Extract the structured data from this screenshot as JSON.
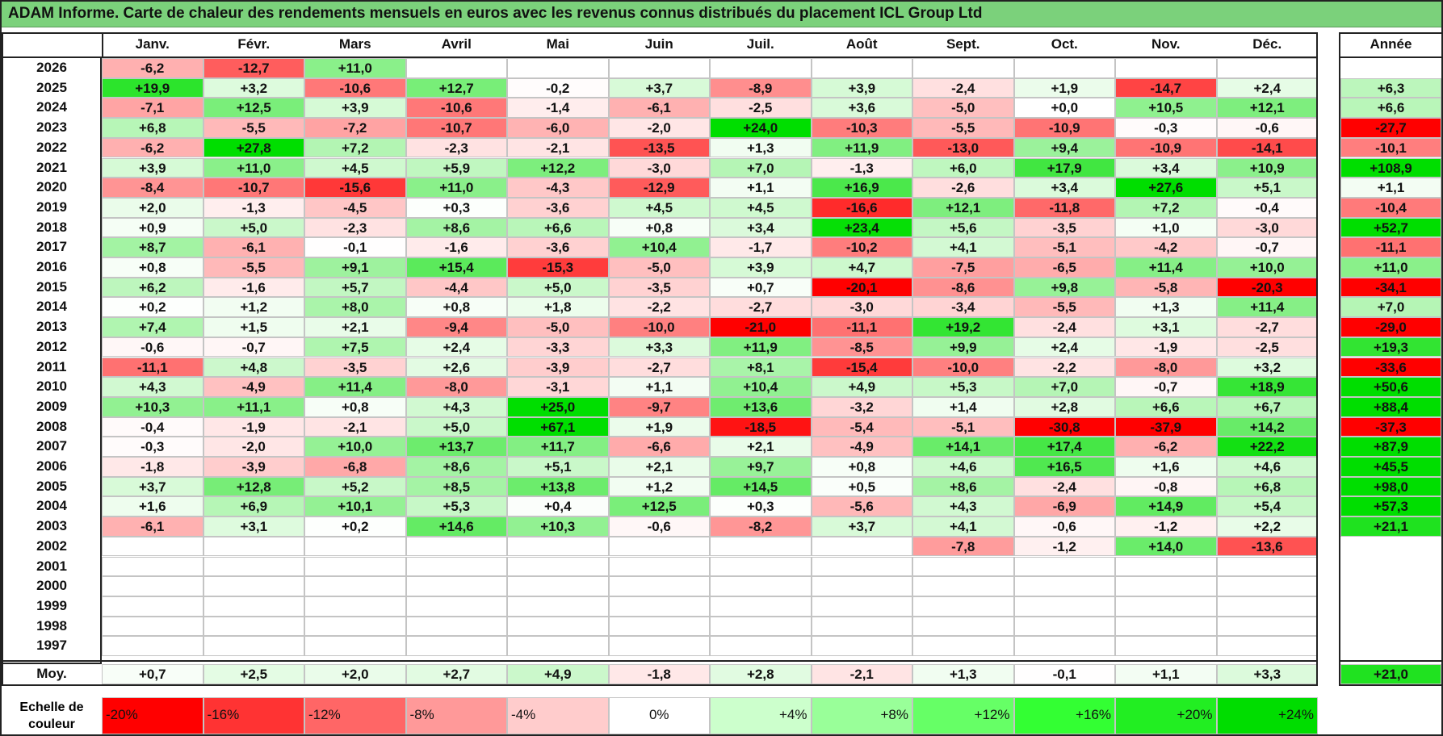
{
  "title": "ADAM Informe. Carte de chaleur des rendements mensuels en euros avec les revenus connus distribués du placement ICL Group Ltd",
  "chart_data": {
    "type": "heatmap",
    "title": "ADAM Informe. Carte de chaleur des rendements mensuels en euros avec les revenus connus distribués du placement ICL Group Ltd",
    "columns": [
      "Janv.",
      "Févr.",
      "Mars",
      "Avril",
      "Mai",
      "Juin",
      "Juil.",
      "Août",
      "Sept.",
      "Oct.",
      "Nov.",
      "Déc."
    ],
    "year_column_label": "Année",
    "rows": [
      {
        "year": "2026",
        "values": [
          "-6,2",
          "-12,7",
          "+11,0",
          "",
          "",
          "",
          "",
          "",
          "",
          "",
          "",
          ""
        ],
        "annual": ""
      },
      {
        "year": "2025",
        "values": [
          "+19,9",
          "+3,2",
          "-10,6",
          "+12,7",
          "-0,2",
          "+3,7",
          "-8,9",
          "+3,9",
          "-2,4",
          "+1,9",
          "-14,7",
          "+2,4"
        ],
        "annual": "+6,3"
      },
      {
        "year": "2024",
        "values": [
          "-7,1",
          "+12,5",
          "+3,9",
          "-10,6",
          "-1,4",
          "-6,1",
          "-2,5",
          "+3,6",
          "-5,0",
          "+0,0",
          "+10,5",
          "+12,1"
        ],
        "annual": "+6,6"
      },
      {
        "year": "2023",
        "values": [
          "+6,8",
          "-5,5",
          "-7,2",
          "-10,7",
          "-6,0",
          "-2,0",
          "+24,0",
          "-10,3",
          "-5,5",
          "-10,9",
          "-0,3",
          "-0,6"
        ],
        "annual": "-27,7"
      },
      {
        "year": "2022",
        "values": [
          "-6,2",
          "+27,8",
          "+7,2",
          "-2,3",
          "-2,1",
          "-13,5",
          "+1,3",
          "+11,9",
          "-13,0",
          "+9,4",
          "-10,9",
          "-14,1"
        ],
        "annual": "-10,1"
      },
      {
        "year": "2021",
        "values": [
          "+3,9",
          "+11,0",
          "+4,5",
          "+5,9",
          "+12,2",
          "-3,0",
          "+7,0",
          "-1,3",
          "+6,0",
          "+17,9",
          "+3,4",
          "+10,9"
        ],
        "annual": "+108,9"
      },
      {
        "year": "2020",
        "values": [
          "-8,4",
          "-10,7",
          "-15,6",
          "+11,0",
          "-4,3",
          "-12,9",
          "+1,1",
          "+16,9",
          "-2,6",
          "+3,4",
          "+27,6",
          "+5,1"
        ],
        "annual": "+1,1"
      },
      {
        "year": "2019",
        "values": [
          "+2,0",
          "-1,3",
          "-4,5",
          "+0,3",
          "-3,6",
          "+4,5",
          "+4,5",
          "-16,6",
          "+12,1",
          "-11,8",
          "+7,2",
          "-0,4"
        ],
        "annual": "-10,4"
      },
      {
        "year": "2018",
        "values": [
          "+0,9",
          "+5,0",
          "-2,3",
          "+8,6",
          "+6,6",
          "+0,8",
          "+3,4",
          "+23,4",
          "+5,6",
          "-3,5",
          "+1,0",
          "-3,0"
        ],
        "annual": "+52,7"
      },
      {
        "year": "2017",
        "values": [
          "+8,7",
          "-6,1",
          "-0,1",
          "-1,6",
          "-3,6",
          "+10,4",
          "-1,7",
          "-10,2",
          "+4,1",
          "-5,1",
          "-4,2",
          "-0,7"
        ],
        "annual": "-11,1"
      },
      {
        "year": "2016",
        "values": [
          "+0,8",
          "-5,5",
          "+9,1",
          "+15,4",
          "-15,3",
          "-5,0",
          "+3,9",
          "+4,7",
          "-7,5",
          "-6,5",
          "+11,4",
          "+10,0"
        ],
        "annual": "+11,0"
      },
      {
        "year": "2015",
        "values": [
          "+6,2",
          "-1,6",
          "+5,7",
          "-4,4",
          "+5,0",
          "-3,5",
          "+0,7",
          "-20,1",
          "-8,6",
          "+9,8",
          "-5,8",
          "-20,3"
        ],
        "annual": "-34,1"
      },
      {
        "year": "2014",
        "values": [
          "+0,2",
          "+1,2",
          "+8,0",
          "+0,8",
          "+1,8",
          "-2,2",
          "-2,7",
          "-3,0",
          "-3,4",
          "-5,5",
          "+1,3",
          "+11,4"
        ],
        "annual": "+7,0"
      },
      {
        "year": "2013",
        "values": [
          "+7,4",
          "+1,5",
          "+2,1",
          "-9,4",
          "-5,0",
          "-10,0",
          "-21,0",
          "-11,1",
          "+19,2",
          "-2,4",
          "+3,1",
          "-2,7"
        ],
        "annual": "-29,0"
      },
      {
        "year": "2012",
        "values": [
          "-0,6",
          "-0,7",
          "+7,5",
          "+2,4",
          "-3,3",
          "+3,3",
          "+11,9",
          "-8,5",
          "+9,9",
          "+2,4",
          "-1,9",
          "-2,5"
        ],
        "annual": "+19,3"
      },
      {
        "year": "2011",
        "values": [
          "-11,1",
          "+4,8",
          "-3,5",
          "+2,6",
          "-3,9",
          "-2,7",
          "+8,1",
          "-15,4",
          "-10,0",
          "-2,2",
          "-8,0",
          "+3,2"
        ],
        "annual": "-33,6"
      },
      {
        "year": "2010",
        "values": [
          "+4,3",
          "-4,9",
          "+11,4",
          "-8,0",
          "-3,1",
          "+1,1",
          "+10,4",
          "+4,9",
          "+5,3",
          "+7,0",
          "-0,7",
          "+18,9"
        ],
        "annual": "+50,6"
      },
      {
        "year": "2009",
        "values": [
          "+10,3",
          "+11,1",
          "+0,8",
          "+4,3",
          "+25,0",
          "-9,7",
          "+13,6",
          "-3,2",
          "+1,4",
          "+2,8",
          "+6,6",
          "+6,7"
        ],
        "annual": "+88,4"
      },
      {
        "year": "2008",
        "values": [
          "-0,4",
          "-1,9",
          "-2,1",
          "+5,0",
          "+67,1",
          "+1,9",
          "-18,5",
          "-5,4",
          "-5,1",
          "-30,8",
          "-37,9",
          "+14,2"
        ],
        "annual": "-37,3"
      },
      {
        "year": "2007",
        "values": [
          "-0,3",
          "-2,0",
          "+10,0",
          "+13,7",
          "+11,7",
          "-6,6",
          "+2,1",
          "-4,9",
          "+14,1",
          "+17,4",
          "-6,2",
          "+22,2"
        ],
        "annual": "+87,9"
      },
      {
        "year": "2006",
        "values": [
          "-1,8",
          "-3,9",
          "-6,8",
          "+8,6",
          "+5,1",
          "+2,1",
          "+9,7",
          "+0,8",
          "+4,6",
          "+16,5",
          "+1,6",
          "+4,6"
        ],
        "annual": "+45,5"
      },
      {
        "year": "2005",
        "values": [
          "+3,7",
          "+12,8",
          "+5,2",
          "+8,5",
          "+13,8",
          "+1,2",
          "+14,5",
          "+0,5",
          "+8,6",
          "-2,4",
          "-0,8",
          "+6,8"
        ],
        "annual": "+98,0"
      },
      {
        "year": "2004",
        "values": [
          "+1,6",
          "+6,9",
          "+10,1",
          "+5,3",
          "+0,4",
          "+12,5",
          "+0,3",
          "-5,6",
          "+4,3",
          "-6,9",
          "+14,9",
          "+5,4"
        ],
        "annual": "+57,3"
      },
      {
        "year": "2003",
        "values": [
          "-6,1",
          "+3,1",
          "+0,2",
          "+14,6",
          "+10,3",
          "-0,6",
          "-8,2",
          "+3,7",
          "+4,1",
          "-0,6",
          "-1,2",
          "+2,2"
        ],
        "annual": "+21,1"
      },
      {
        "year": "2002",
        "values": [
          "",
          "",
          "",
          "",
          "",
          "",
          "",
          "",
          "-7,8",
          "-1,2",
          "+14,0",
          "-13,6"
        ],
        "annual": ""
      },
      {
        "year": "2001",
        "values": [
          "",
          "",
          "",
          "",
          "",
          "",
          "",
          "",
          "",
          "",
          "",
          ""
        ],
        "annual": ""
      },
      {
        "year": "2000",
        "values": [
          "",
          "",
          "",
          "",
          "",
          "",
          "",
          "",
          "",
          "",
          "",
          ""
        ],
        "annual": ""
      },
      {
        "year": "1999",
        "values": [
          "",
          "",
          "",
          "",
          "",
          "",
          "",
          "",
          "",
          "",
          "",
          ""
        ],
        "annual": ""
      },
      {
        "year": "1998",
        "values": [
          "",
          "",
          "",
          "",
          "",
          "",
          "",
          "",
          "",
          "",
          "",
          ""
        ],
        "annual": ""
      },
      {
        "year": "1997",
        "values": [
          "",
          "",
          "",
          "",
          "",
          "",
          "",
          "",
          "",
          "",
          "",
          ""
        ],
        "annual": ""
      }
    ],
    "average": {
      "label": "Moy.",
      "values": [
        "+0,7",
        "+2,5",
        "+2,0",
        "+2,7",
        "+4,9",
        "-1,8",
        "+2,8",
        "-2,1",
        "+1,3",
        "-0,1",
        "+1,1",
        "+3,3"
      ],
      "annual": "+21,0"
    },
    "color_scale": {
      "label": "Echelle de couleur",
      "steps": [
        {
          "label": "-20%",
          "value": -20,
          "color": "#ff0000"
        },
        {
          "label": "-16%",
          "value": -16,
          "color": "#ff3333"
        },
        {
          "label": "-12%",
          "value": -12,
          "color": "#ff6666"
        },
        {
          "label": "-8%",
          "value": -8,
          "color": "#ff9999"
        },
        {
          "label": "-4%",
          "value": -4,
          "color": "#ffcccc"
        },
        {
          "label": "0%",
          "value": 0,
          "color": "#ffffff"
        },
        {
          "label": "+4%",
          "value": 4,
          "color": "#ccffcc"
        },
        {
          "label": "+8%",
          "value": 8,
          "color": "#99ff99"
        },
        {
          "label": "+12%",
          "value": 12,
          "color": "#66ff66"
        },
        {
          "label": "+16%",
          "value": 16,
          "color": "#33ff33"
        },
        {
          "label": "+20%",
          "value": 20,
          "color": "#22ee22"
        },
        {
          "label": "+24%",
          "value": 24,
          "color": "#00dd00"
        }
      ]
    }
  }
}
